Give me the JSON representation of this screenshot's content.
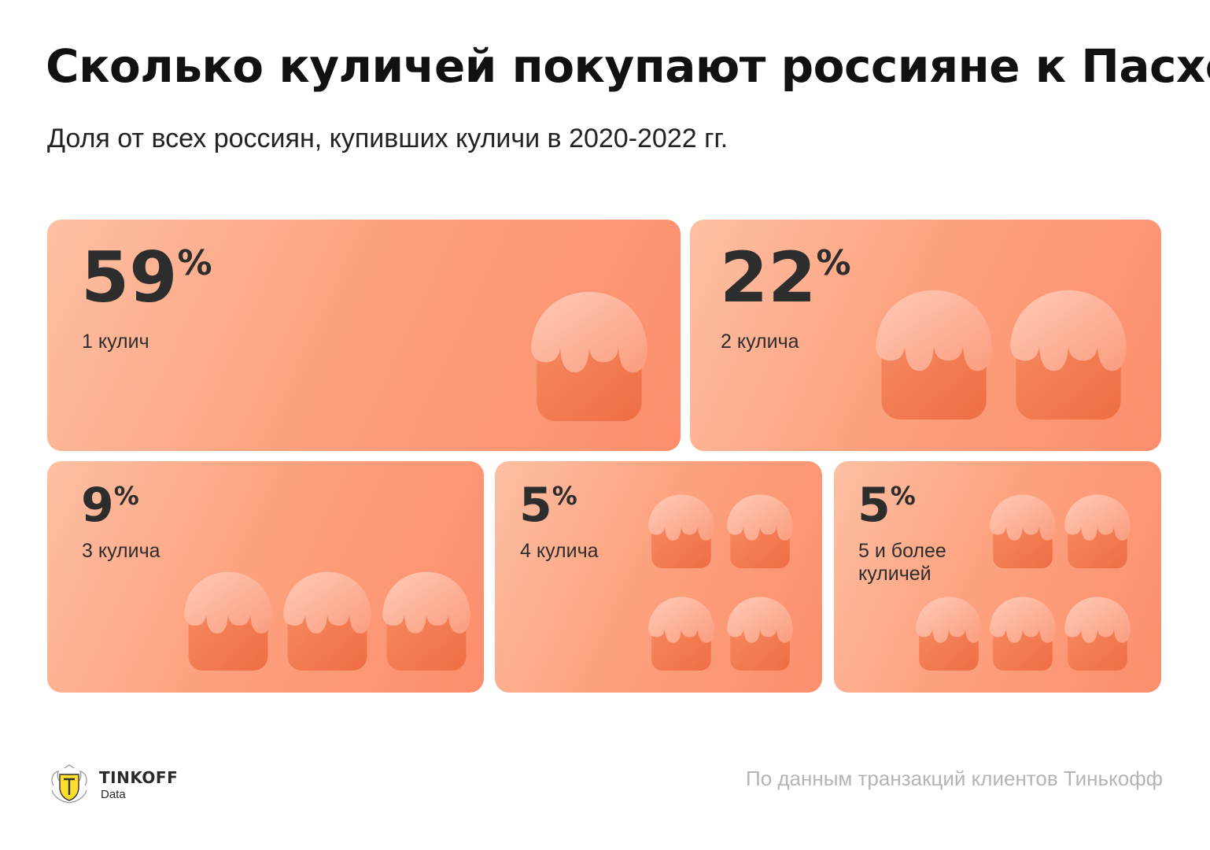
{
  "title": "Сколько куличей покупают россияне к Пасхе",
  "subtitle": "Доля от всех россиян, купивших куличи в 2020-2022 гг.",
  "source": "По данным транзакций клиентов Тинькофф",
  "brand": {
    "name": "TINKOFF",
    "sub": "Data"
  },
  "colors": {
    "card_light": "#fdbfa3",
    "card_dark": "#fc8e6c",
    "cake_body": "#f06e44",
    "cake_icing": "#ffcab6",
    "text": "#2d2d2d",
    "source_text": "#b4b4b4",
    "brand_yellow": "#ffdd2d"
  },
  "chart_data": {
    "type": "table",
    "title": "Сколько куличей покупают россияне к Пасхе",
    "subtitle": "Доля от всех россиян, купивших куличи в 2020-2022 гг.",
    "unit": "%",
    "categories": [
      "1 кулич",
      "2 кулича",
      "3 кулича",
      "4 кулича",
      "5 и более куличей"
    ],
    "values": [
      59,
      22,
      9,
      5,
      5
    ],
    "cakes_shown": [
      1,
      2,
      3,
      4,
      5
    ]
  },
  "cards": [
    {
      "value": "59",
      "sign": "%",
      "label": "1 кулич"
    },
    {
      "value": "22",
      "sign": "%",
      "label": "2 кулича"
    },
    {
      "value": "9",
      "sign": "%",
      "label": "3 кулича"
    },
    {
      "value": "5",
      "sign": "%",
      "label": "4 кулича"
    },
    {
      "value": "5",
      "sign": "%",
      "label": "5 и более\nкуличей"
    }
  ]
}
